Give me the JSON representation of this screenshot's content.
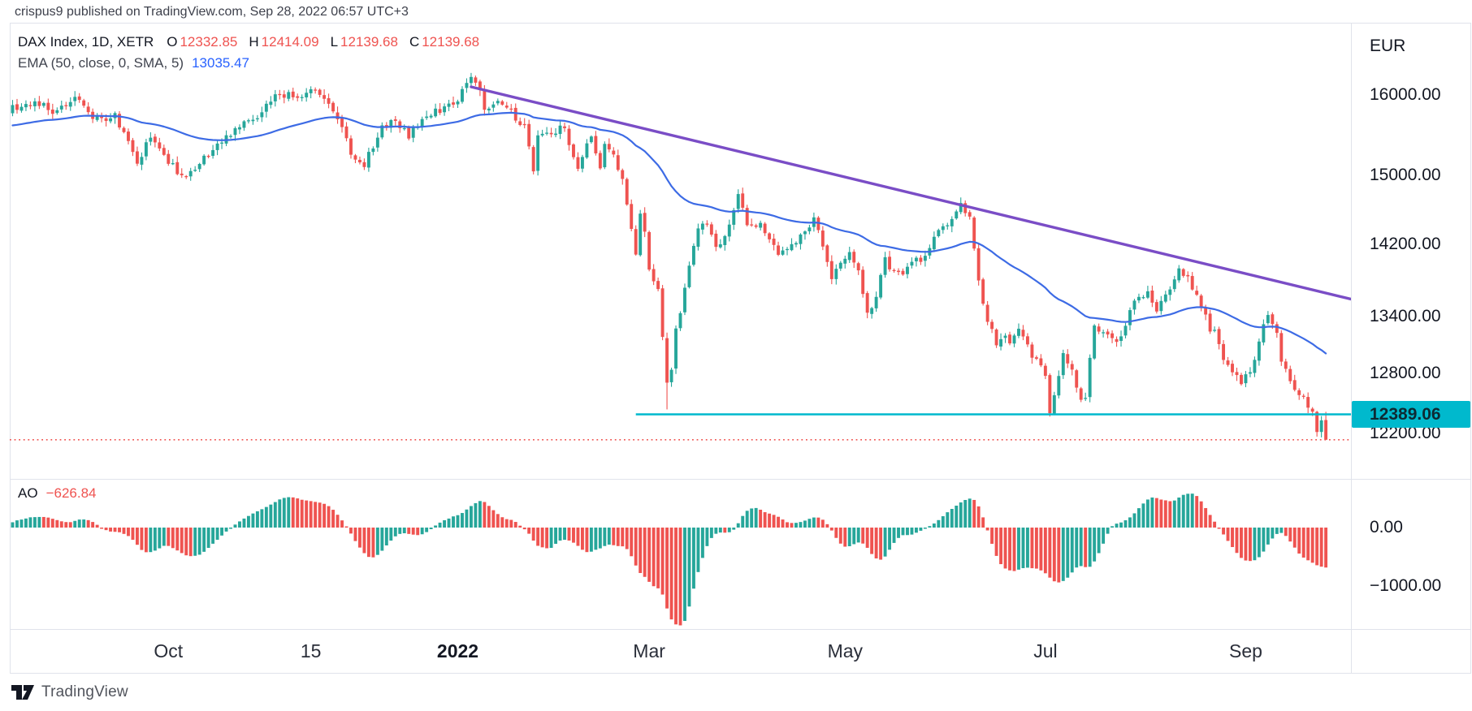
{
  "attribution": "crispus9 published on TradingView.com, Sep 28, 2022 06:57 UTC+3",
  "legend": {
    "symbol": "DAX Index, 1D, XETR",
    "ohlc": [
      {
        "key": "O",
        "value": "12332.85"
      },
      {
        "key": "H",
        "value": "12414.09"
      },
      {
        "key": "L",
        "value": "12139.68"
      },
      {
        "key": "C",
        "value": "12139.68"
      }
    ],
    "indicator": {
      "label": "EMA (50, close, 0, SMA, 5)",
      "value": "13035.47"
    }
  },
  "ao_legend": {
    "label": "AO",
    "value": "−626.84"
  },
  "price_axis": {
    "currency": "EUR",
    "ticks": [
      16000,
      15000,
      14200,
      13400,
      12800,
      12200
    ],
    "badge": {
      "label": "12389.06",
      "price": 12389.06
    }
  },
  "ao_axis": {
    "ticks": [
      {
        "label": "0.00",
        "value": 0
      },
      {
        "label": "−1000.00",
        "value": -1000
      }
    ]
  },
  "time_axis": {
    "ticks": [
      {
        "label": "Oct",
        "day": 35,
        "bold": false
      },
      {
        "label": "15",
        "day": 67,
        "bold": false
      },
      {
        "label": "2022",
        "day": 100,
        "bold": true
      },
      {
        "label": "Mar",
        "day": 143,
        "bold": false
      },
      {
        "label": "May",
        "day": 187,
        "bold": false
      },
      {
        "label": "Jul",
        "day": 232,
        "bold": false
      },
      {
        "label": "Sep",
        "day": 277,
        "bold": false
      }
    ]
  },
  "watermark": "TradingView",
  "colors": {
    "up": "#26a69a",
    "down": "#ef5350",
    "ema": "#3d6be5",
    "trendline": "#7a4dc6",
    "support": "#00b9cd",
    "last_price_line": "#ef5350",
    "divider": "#e0e3eb",
    "text": "#131722"
  },
  "chart_data": {
    "type": "candlestick",
    "symbol": "DAX Index",
    "interval": "1D",
    "exchange": "XETR",
    "currency": "EUR",
    "scale": "log",
    "panes": [
      "price: daily candles, EMA(50,close,0,SMA,5) overlay, descending trendline from Jan peak, horizontal support at 12389.06, dotted last-price line at 12139.68",
      "AO (Awesome Oscillator) histogram, ticks 0.00 and -1000.00"
    ],
    "last_candle": {
      "open": 12332.85,
      "high": 12414.09,
      "low": 12139.68,
      "close": 12139.68
    },
    "ema_last": 13035.47,
    "ao_last": -626.84,
    "visible_days": 296,
    "history_days": 40,
    "price_anchors": [
      [
        -40,
        15450
      ],
      [
        -30,
        15680
      ],
      [
        -22,
        15520
      ],
      [
        -14,
        15760
      ],
      [
        -7,
        15560
      ],
      [
        0,
        15830
      ],
      [
        5,
        15920
      ],
      [
        9,
        15790
      ],
      [
        14,
        15950
      ],
      [
        19,
        15680
      ],
      [
        23,
        15730
      ],
      [
        27,
        15260
      ],
      [
        28,
        15120
      ],
      [
        31,
        15480
      ],
      [
        35,
        15180
      ],
      [
        38,
        14980
      ],
      [
        44,
        15250
      ],
      [
        50,
        15550
      ],
      [
        55,
        15750
      ],
      [
        60,
        16030
      ],
      [
        64,
        15950
      ],
      [
        67,
        16080
      ],
      [
        71,
        15880
      ],
      [
        75,
        15450
      ],
      [
        76,
        15260
      ],
      [
        79,
        15120
      ],
      [
        83,
        15620
      ],
      [
        86,
        15680
      ],
      [
        89,
        15480
      ],
      [
        93,
        15750
      ],
      [
        98,
        15850
      ],
      [
        100,
        15950
      ],
      [
        103,
        16210
      ],
      [
        105,
        16050
      ],
      [
        106,
        15770
      ],
      [
        109,
        15880
      ],
      [
        112,
        15780
      ],
      [
        115,
        15600
      ],
      [
        117,
        15060
      ],
      [
        118,
        15450
      ],
      [
        121,
        15520
      ],
      [
        124,
        15620
      ],
      [
        126,
        15200
      ],
      [
        127,
        15100
      ],
      [
        130,
        15490
      ],
      [
        132,
        15060
      ],
      [
        133,
        15410
      ],
      [
        135,
        15270
      ],
      [
        137,
        14940
      ],
      [
        138,
        14700
      ],
      [
        140,
        14060
      ],
      [
        141,
        14560
      ],
      [
        142,
        14300
      ],
      [
        143,
        13900
      ],
      [
        145,
        13700
      ],
      [
        147,
        12700
      ],
      [
        148,
        12830
      ],
      [
        149,
        13290
      ],
      [
        150,
        13440
      ],
      [
        152,
        13930
      ],
      [
        154,
        14420
      ],
      [
        156,
        14390
      ],
      [
        158,
        14160
      ],
      [
        160,
        14270
      ],
      [
        163,
        14750
      ],
      [
        165,
        14450
      ],
      [
        168,
        14420
      ],
      [
        170,
        14250
      ],
      [
        172,
        14080
      ],
      [
        175,
        14160
      ],
      [
        178,
        14320
      ],
      [
        180,
        14500
      ],
      [
        182,
        14150
      ],
      [
        184,
        13790
      ],
      [
        186,
        13970
      ],
      [
        188,
        14080
      ],
      [
        190,
        13900
      ],
      [
        192,
        13400
      ],
      [
        194,
        13650
      ],
      [
        196,
        14030
      ],
      [
        198,
        13880
      ],
      [
        200,
        13880
      ],
      [
        202,
        14000
      ],
      [
        204,
        14010
      ],
      [
        206,
        14180
      ],
      [
        208,
        14390
      ],
      [
        211,
        14460
      ],
      [
        213,
        14650
      ],
      [
        215,
        14480
      ],
      [
        218,
        13500
      ],
      [
        221,
        13130
      ],
      [
        223,
        13230
      ],
      [
        224,
        13140
      ],
      [
        226,
        13290
      ],
      [
        228,
        13140
      ],
      [
        229,
        13000
      ],
      [
        232,
        12770
      ],
      [
        233,
        12430
      ],
      [
        234,
        12595
      ],
      [
        236,
        13000
      ],
      [
        238,
        12840
      ],
      [
        240,
        12550
      ],
      [
        241,
        12570
      ],
      [
        243,
        13300
      ],
      [
        245,
        13250
      ],
      [
        247,
        13160
      ],
      [
        248,
        13100
      ],
      [
        250,
        13280
      ],
      [
        251,
        13480
      ],
      [
        253,
        13590
      ],
      [
        255,
        13660
      ],
      [
        257,
        13480
      ],
      [
        258,
        13535
      ],
      [
        260,
        13700
      ],
      [
        262,
        13910
      ],
      [
        264,
        13820
      ],
      [
        265,
        13700
      ],
      [
        267,
        13540
      ],
      [
        269,
        13270
      ],
      [
        270,
        13220
      ],
      [
        272,
        12970
      ],
      [
        274,
        12835
      ],
      [
        276,
        12720
      ],
      [
        277,
        12760
      ],
      [
        279,
        12915
      ],
      [
        281,
        13350
      ],
      [
        282,
        13400
      ],
      [
        284,
        13190
      ],
      [
        285,
        12960
      ],
      [
        287,
        12740
      ],
      [
        288,
        12670
      ],
      [
        290,
        12530
      ],
      [
        292,
        12450
      ],
      [
        293,
        12230
      ],
      [
        294,
        12340
      ],
      [
        295,
        12139.68
      ]
    ],
    "wick_lows": {
      "147": 12438,
      "192": 13380,
      "233": 12390
    },
    "wick_highs": {
      "103": 16285
    },
    "trendline": {
      "from_day": 103,
      "from_price": 16104,
      "to_day": 301,
      "to_price": 13583
    },
    "support_line": {
      "price": 12389.06,
      "from_day": 140
    },
    "last_price": 12139.68
  }
}
